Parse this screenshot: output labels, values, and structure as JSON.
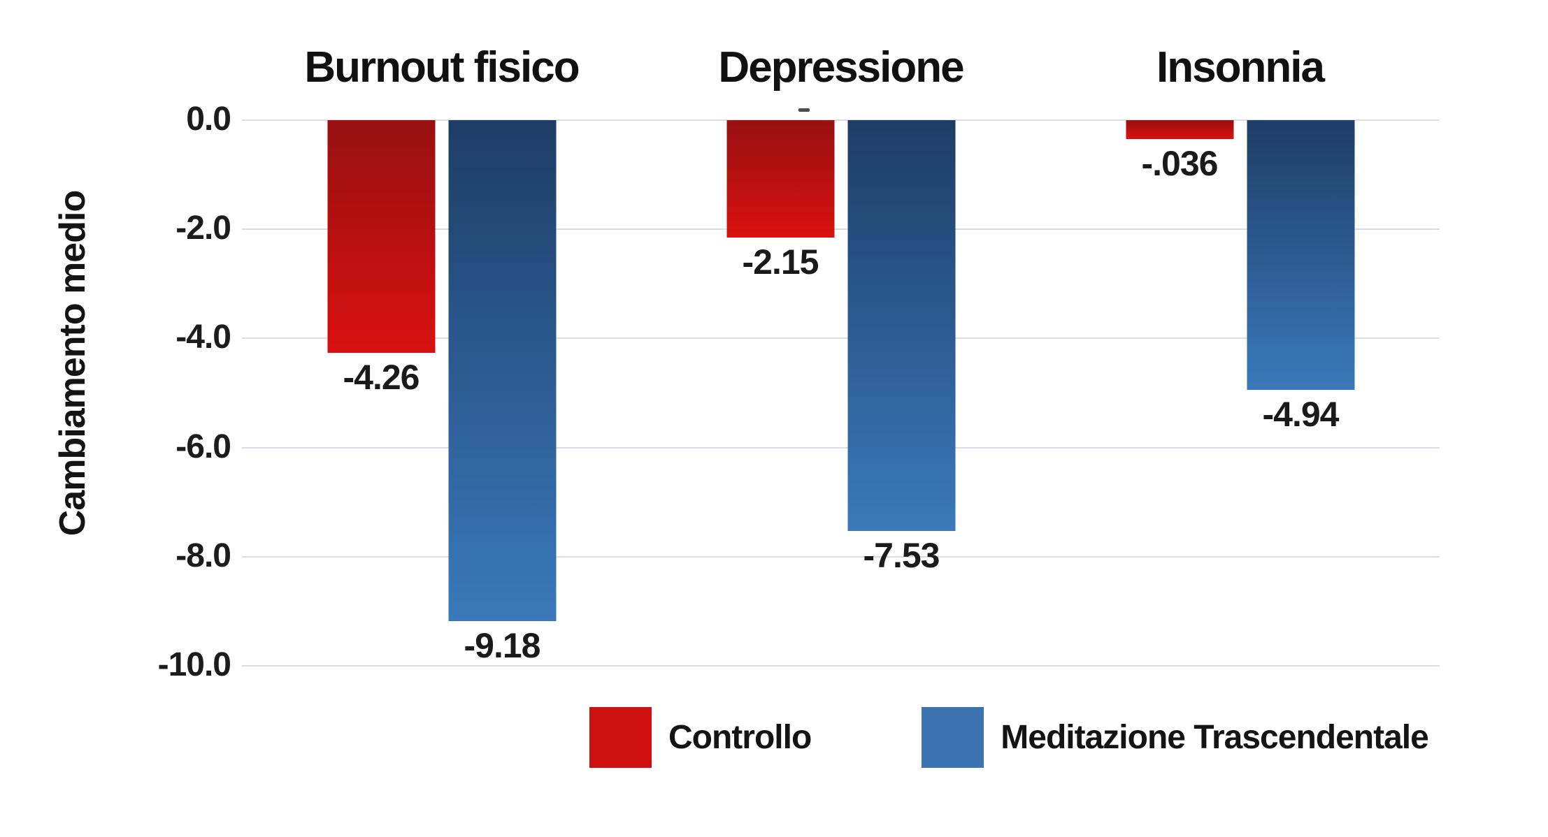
{
  "chart_data": {
    "type": "bar",
    "categories": [
      "Burnout fisico",
      "Depressione",
      "Insonnia"
    ],
    "series": [
      {
        "name": "Controllo",
        "color": "#ce1110",
        "color_top": "#971010",
        "color_bottom": "#d81110",
        "values": [
          -4.26,
          -2.15,
          -0.036
        ],
        "labels": [
          "-4.26",
          "-2.15",
          "-.036"
        ]
      },
      {
        "name": "Meditazione Trascendentale",
        "color": "#3a73b0",
        "color_top": "#1d3d66",
        "color_bottom": "#3a79bb",
        "values": [
          -9.18,
          -7.53,
          -4.94
        ],
        "labels": [
          "-9.18",
          "-7.53",
          "-4.94"
        ]
      }
    ],
    "title": "",
    "xlabel": "",
    "ylabel": "Cambiamento medio",
    "ylim": [
      0,
      -10
    ],
    "yticks": [
      0,
      -2,
      -4,
      -6,
      -8,
      -10
    ],
    "ytick_labels": [
      "0.0",
      "-2.0",
      "-4.0",
      "-6.0",
      "-8.0",
      "-10.0"
    ],
    "grid": true,
    "legend_position": "bottom"
  }
}
